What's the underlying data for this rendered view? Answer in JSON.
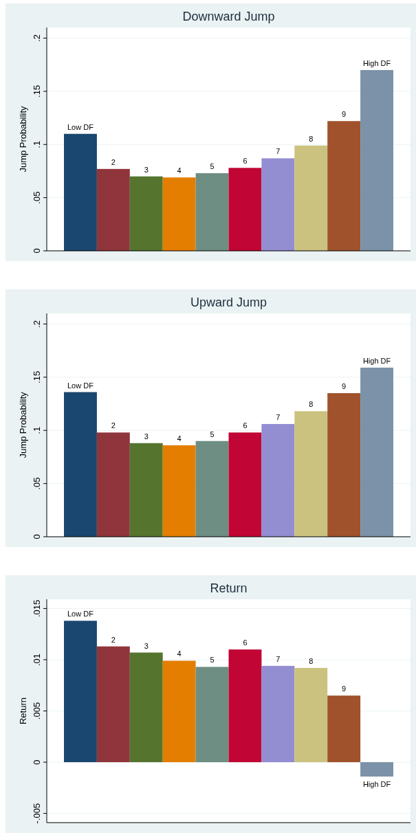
{
  "chart_data": [
    {
      "type": "bar",
      "title": "Downward Jump",
      "ylabel": "Jump Probability",
      "categories": [
        "Low DF",
        "2",
        "3",
        "4",
        "5",
        "6",
        "7",
        "8",
        "9",
        "High DF"
      ],
      "values": [
        0.11,
        0.077,
        0.07,
        0.069,
        0.073,
        0.078,
        0.087,
        0.099,
        0.122,
        0.17
      ],
      "colors": [
        "#1a476f",
        "#90353b",
        "#55752f",
        "#e37e00",
        "#6e8e84",
        "#c10534",
        "#938dd2",
        "#cac27e",
        "#a0522d",
        "#7b92a8"
      ],
      "ylim": [
        0,
        0.21
      ],
      "yticks": [
        {
          "value": 0,
          "label": "0"
        },
        {
          "value": 0.05,
          "label": ".05"
        },
        {
          "value": 0.1,
          "label": ".1"
        },
        {
          "value": 0.15,
          "label": ".15"
        },
        {
          "value": 0.2,
          "label": ".2"
        }
      ],
      "grid": "y"
    },
    {
      "type": "bar",
      "title": "Upward Jump",
      "ylabel": "Jump Probability",
      "categories": [
        "Low DF",
        "2",
        "3",
        "4",
        "5",
        "6",
        "7",
        "8",
        "9",
        "High DF"
      ],
      "values": [
        0.136,
        0.098,
        0.088,
        0.086,
        0.09,
        0.098,
        0.106,
        0.118,
        0.135,
        0.159
      ],
      "colors": [
        "#1a476f",
        "#90353b",
        "#55752f",
        "#e37e00",
        "#6e8e84",
        "#c10534",
        "#938dd2",
        "#cac27e",
        "#a0522d",
        "#7b92a8"
      ],
      "ylim": [
        0,
        0.21
      ],
      "yticks": [
        {
          "value": 0,
          "label": "0"
        },
        {
          "value": 0.05,
          "label": ".05"
        },
        {
          "value": 0.1,
          "label": ".1"
        },
        {
          "value": 0.15,
          "label": ".15"
        },
        {
          "value": 0.2,
          "label": ".2"
        }
      ],
      "grid": "y"
    },
    {
      "type": "bar",
      "title": "Return",
      "ylabel": "Return",
      "categories": [
        "Low DF",
        "2",
        "3",
        "4",
        "5",
        "6",
        "7",
        "8",
        "9",
        "High DF"
      ],
      "values": [
        0.0138,
        0.0113,
        0.0107,
        0.0099,
        0.0093,
        0.011,
        0.0094,
        0.0092,
        0.0065,
        -0.0014
      ],
      "colors": [
        "#1a476f",
        "#90353b",
        "#55752f",
        "#e37e00",
        "#6e8e84",
        "#c10534",
        "#938dd2",
        "#cac27e",
        "#a0522d",
        "#7b92a8"
      ],
      "ylim": [
        -0.0059,
        0.0159
      ],
      "yticks": [
        {
          "value": -0.005,
          "label": "-.005"
        },
        {
          "value": 0,
          "label": "0"
        },
        {
          "value": 0.005,
          "label": ".005"
        },
        {
          "value": 0.01,
          "label": ".01"
        },
        {
          "value": 0.015,
          "label": ".015"
        }
      ],
      "grid": "y"
    }
  ]
}
